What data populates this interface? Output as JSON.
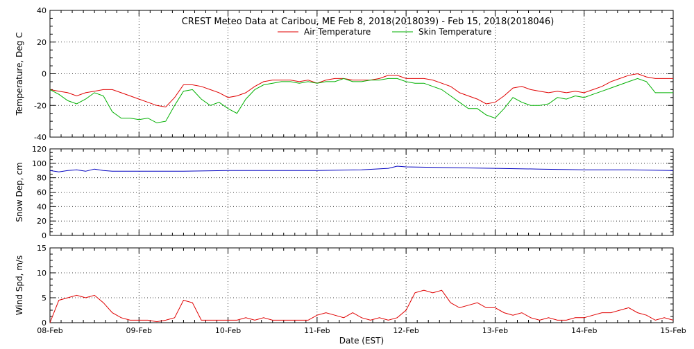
{
  "chart_data": [
    {
      "type": "line",
      "title": "CREST Meteo Data at Caribou, ME   Feb  8, 2018(2018039) - Feb 15, 2018(2018046)",
      "ylabel": "Temperature, Deg C",
      "ylim": [
        -40,
        40
      ],
      "yticks": [
        -40,
        -20,
        0,
        20,
        40
      ],
      "grid": true,
      "legend": "top-center",
      "series": [
        {
          "name": "Air Temperature",
          "color": "#e00000",
          "x": [
            0,
            0.1,
            0.2,
            0.3,
            0.4,
            0.5,
            0.6,
            0.7,
            0.8,
            0.9,
            1.0,
            1.1,
            1.2,
            1.3,
            1.4,
            1.5,
            1.6,
            1.7,
            1.8,
            1.9,
            2.0,
            2.1,
            2.2,
            2.3,
            2.4,
            2.5,
            2.6,
            2.7,
            2.8,
            2.9,
            3.0,
            3.1,
            3.2,
            3.3,
            3.4,
            3.5,
            3.6,
            3.7,
            3.8,
            3.9,
            4.0,
            4.1,
            4.2,
            4.3,
            4.4,
            4.5,
            4.6,
            4.7,
            4.8,
            4.9,
            5.0,
            5.1,
            5.2,
            5.3,
            5.4,
            5.5,
            5.6,
            5.7,
            5.8,
            5.9,
            6.0,
            6.1,
            6.2,
            6.3,
            6.4,
            6.5,
            6.6,
            6.7,
            6.8,
            6.9,
            7.0
          ],
          "values": [
            -10,
            -11,
            -12,
            -14,
            -12,
            -11,
            -10,
            -10,
            -12,
            -14,
            -16,
            -18,
            -20,
            -21,
            -15,
            -7,
            -7,
            -8,
            -10,
            -12,
            -15,
            -14,
            -12,
            -8,
            -5,
            -4,
            -4,
            -4,
            -5,
            -4,
            -6,
            -4,
            -3,
            -3,
            -4,
            -4,
            -4,
            -3,
            -1,
            -1,
            -3,
            -3,
            -3,
            -4,
            -6,
            -8,
            -12,
            -14,
            -16,
            -19,
            -18,
            -14,
            -9,
            -8,
            -10,
            -11,
            -12,
            -11,
            -12,
            -11,
            -12,
            -10,
            -8,
            -5,
            -3,
            -1,
            0,
            -2,
            -3,
            -3,
            -3
          ],
          "values_note": ""
        },
        {
          "name": "Skin Temperature",
          "color": "#00b000",
          "x": [
            0,
            0.1,
            0.2,
            0.3,
            0.4,
            0.5,
            0.6,
            0.7,
            0.8,
            0.9,
            1.0,
            1.1,
            1.2,
            1.3,
            1.4,
            1.5,
            1.6,
            1.7,
            1.8,
            1.9,
            2.0,
            2.1,
            2.2,
            2.3,
            2.4,
            2.5,
            2.6,
            2.7,
            2.8,
            2.9,
            3.0,
            3.1,
            3.2,
            3.3,
            3.4,
            3.5,
            3.6,
            3.7,
            3.8,
            3.9,
            4.0,
            4.1,
            4.2,
            4.3,
            4.4,
            4.5,
            4.6,
            4.7,
            4.8,
            4.9,
            5.0,
            5.1,
            5.2,
            5.3,
            5.4,
            5.5,
            5.6,
            5.7,
            5.8,
            5.9,
            6.0,
            6.1,
            6.2,
            6.3,
            6.4,
            6.5,
            6.6,
            6.7,
            6.8,
            6.9,
            7.0
          ],
          "values": [
            -10,
            -13,
            -17,
            -19,
            -16,
            -12,
            -14,
            -24,
            -28,
            -28,
            -29,
            -28,
            -31,
            -30,
            -20,
            -11,
            -10,
            -16,
            -20,
            -18,
            -22,
            -25,
            -16,
            -10,
            -7,
            -6,
            -5,
            -5,
            -6,
            -5,
            -6,
            -5,
            -5,
            -3,
            -5,
            -5,
            -4,
            -4,
            -3,
            -3,
            -5,
            -6,
            -6,
            -8,
            -10,
            -14,
            -18,
            -22,
            -22,
            -26,
            -28,
            -22,
            -15,
            -18,
            -20,
            -20,
            -19,
            -15,
            -16,
            -14,
            -15,
            -13,
            -11,
            -9,
            -7,
            -5,
            -3,
            -5,
            -12,
            -12,
            -12
          ]
        }
      ]
    },
    {
      "type": "line",
      "ylabel": "Snow Dep, cm",
      "ylim": [
        0,
        120
      ],
      "yticks": [
        0,
        20,
        40,
        60,
        80,
        100,
        120
      ],
      "grid": true,
      "series": [
        {
          "color": "#0000c0",
          "x": [
            0,
            0.1,
            0.2,
            0.3,
            0.4,
            0.5,
            0.6,
            0.7,
            0.8,
            0.9,
            1.0,
            1.5,
            2.0,
            2.5,
            3.0,
            3.5,
            3.8,
            3.9,
            4.0,
            4.5,
            5.0,
            5.5,
            6.0,
            6.5,
            7.0
          ],
          "values": [
            90,
            88,
            90,
            91,
            89,
            92,
            90,
            89,
            89,
            89,
            89,
            89,
            90,
            90,
            90,
            91,
            93,
            96,
            95,
            94,
            93,
            92,
            91,
            91,
            90
          ]
        }
      ]
    },
    {
      "type": "line",
      "ylabel": "Wind Spd, m/s",
      "xlabel": "Date (EST)",
      "ylim": [
        0,
        15
      ],
      "yticks": [
        0,
        5,
        10,
        15
      ],
      "grid": true,
      "categories": [
        "08-Feb",
        "09-Feb",
        "10-Feb",
        "11-Feb",
        "12-Feb",
        "13-Feb",
        "14-Feb",
        "15-Feb"
      ],
      "series": [
        {
          "color": "#e00000",
          "x": [
            0,
            0.1,
            0.2,
            0.3,
            0.4,
            0.5,
            0.6,
            0.7,
            0.8,
            0.9,
            1.0,
            1.1,
            1.2,
            1.3,
            1.4,
            1.5,
            1.6,
            1.7,
            1.8,
            1.9,
            2.0,
            2.1,
            2.2,
            2.3,
            2.4,
            2.5,
            2.6,
            2.7,
            2.8,
            2.9,
            3.0,
            3.1,
            3.2,
            3.3,
            3.4,
            3.5,
            3.6,
            3.7,
            3.8,
            3.9,
            4.0,
            4.1,
            4.2,
            4.3,
            4.4,
            4.5,
            4.6,
            4.7,
            4.8,
            4.9,
            5.0,
            5.1,
            5.2,
            5.3,
            5.4,
            5.5,
            5.6,
            5.7,
            5.8,
            5.9,
            6.0,
            6.1,
            6.2,
            6.3,
            6.4,
            6.5,
            6.6,
            6.7,
            6.8,
            6.9,
            7.0
          ],
          "values": [
            0,
            4.5,
            5,
            5.5,
            5,
            5.5,
            4,
            2,
            1,
            0.5,
            0.5,
            0.5,
            0.2,
            0.5,
            1,
            4.5,
            4,
            0.5,
            0.5,
            0.5,
            0.5,
            0.5,
            1,
            0.5,
            1,
            0.5,
            0.5,
            0.5,
            0.5,
            0.5,
            1.5,
            2,
            1.5,
            1,
            2,
            1,
            0.5,
            1,
            0.5,
            1,
            2.5,
            6,
            6.5,
            6,
            6.5,
            4,
            3,
            3.5,
            4,
            3,
            3,
            2,
            1.5,
            2,
            1,
            0.5,
            1,
            0.5,
            0.5,
            1,
            1,
            1.5,
            2,
            2,
            2.5,
            3,
            2,
            1.5,
            0.5,
            1,
            0.5
          ]
        }
      ]
    }
  ]
}
